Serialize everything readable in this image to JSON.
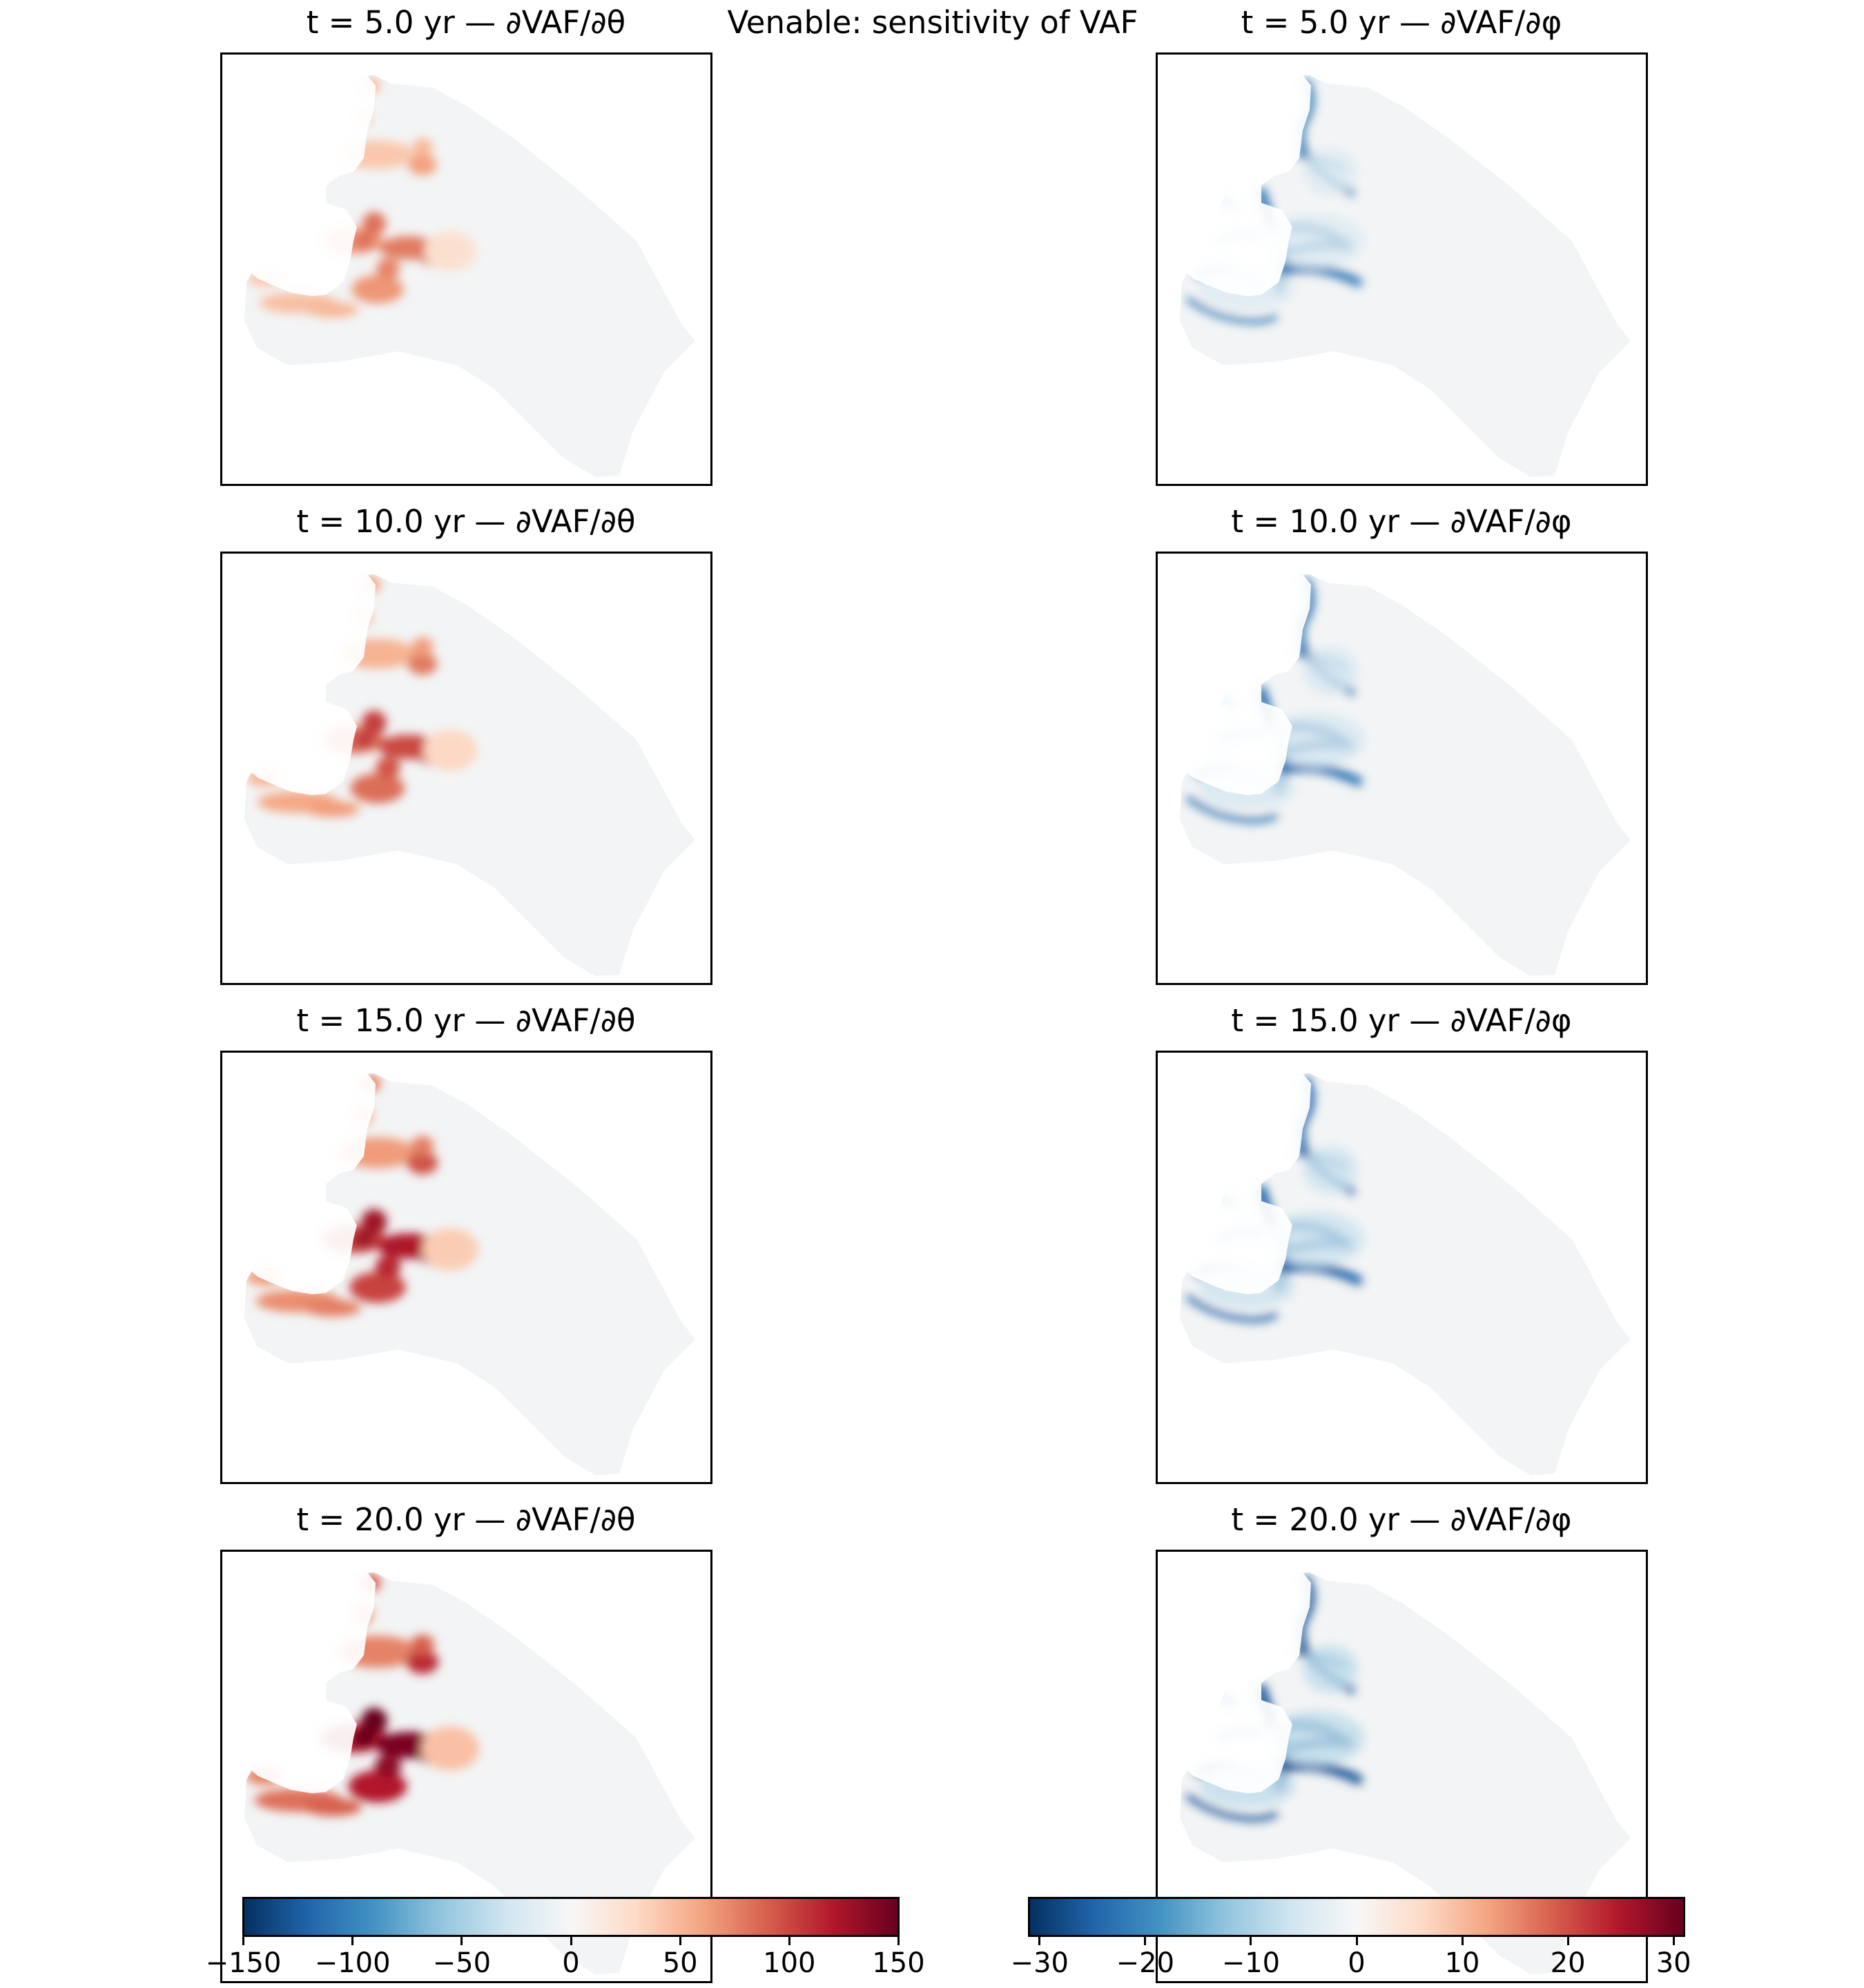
{
  "suptitle": "Venable: sensitivity of VAF",
  "panels": [
    {
      "title": "t = 5.0 yr — ∂VAF/∂θ",
      "field": "theta",
      "t": 5.0
    },
    {
      "title": "t = 5.0 yr — ∂VAF/∂φ",
      "field": "phi",
      "t": 5.0
    },
    {
      "title": "t = 10.0 yr — ∂VAF/∂θ",
      "field": "theta",
      "t": 10.0
    },
    {
      "title": "t = 10.0 yr — ∂VAF/∂φ",
      "field": "phi",
      "t": 10.0
    },
    {
      "title": "t = 15.0 yr — ∂VAF/∂θ",
      "field": "theta",
      "t": 15.0
    },
    {
      "title": "t = 15.0 yr — ∂VAF/∂φ",
      "field": "phi",
      "t": 15.0
    },
    {
      "title": "t = 20.0 yr — ∂VAF/∂θ",
      "field": "theta",
      "t": 20.0
    },
    {
      "title": "t = 20.0 yr — ∂VAF/∂φ",
      "field": "phi",
      "t": 20.0
    }
  ],
  "colorbars": [
    {
      "name": "theta",
      "vmin": -150,
      "vmax": 150,
      "ticks": [
        "−150",
        "−100",
        "−50",
        "0",
        "50",
        "100",
        "150"
      ],
      "tick_values": [
        -150,
        -100,
        -50,
        0,
        50,
        100,
        150
      ]
    },
    {
      "name": "phi",
      "vmin": -31,
      "vmax": 31,
      "ticks": [
        "−30",
        "−20",
        "−10",
        "0",
        "10",
        "20",
        "30"
      ],
      "tick_values": [
        -30,
        -20,
        -10,
        0,
        10,
        20,
        30
      ]
    }
  ],
  "colors": {
    "cmap": "RdBu_r",
    "stops": [
      "#053061",
      "#2166ac",
      "#4393c3",
      "#92c5de",
      "#d1e5f0",
      "#f7f7f7",
      "#fddbc7",
      "#f4a582",
      "#d6604d",
      "#b2182b",
      "#67001f"
    ]
  },
  "chart_data": [
    {
      "type": "heatmap",
      "title": "t = 5.0 yr — ∂VAF/∂θ",
      "vmin": -150,
      "vmax": 150,
      "max_visible": 150
    },
    {
      "type": "heatmap",
      "title": "t = 5.0 yr — ∂VAF/∂φ",
      "vmin": -31,
      "vmax": 31,
      "min_visible": -30
    },
    {
      "type": "heatmap",
      "title": "t = 10.0 yr — ∂VAF/∂θ",
      "vmin": -150,
      "vmax": 150,
      "max_visible": 150
    },
    {
      "type": "heatmap",
      "title": "t = 10.0 yr — ∂VAF/∂φ",
      "vmin": -31,
      "vmax": 31,
      "min_visible": -30
    },
    {
      "type": "heatmap",
      "title": "t = 15.0 yr — ∂VAF/∂θ",
      "vmin": -150,
      "vmax": 150,
      "max_visible": 150
    },
    {
      "type": "heatmap",
      "title": "t = 15.0 yr — ∂VAF/∂φ",
      "vmin": -31,
      "vmax": 31,
      "min_visible": -30
    },
    {
      "type": "heatmap",
      "title": "t = 20.0 yr — ∂VAF/∂θ",
      "vmin": -150,
      "vmax": 150,
      "max_visible": 150
    },
    {
      "type": "heatmap",
      "title": "t = 20.0 yr — ∂VAF/∂φ",
      "vmin": -31,
      "vmax": 31,
      "min_visible": -30
    }
  ]
}
